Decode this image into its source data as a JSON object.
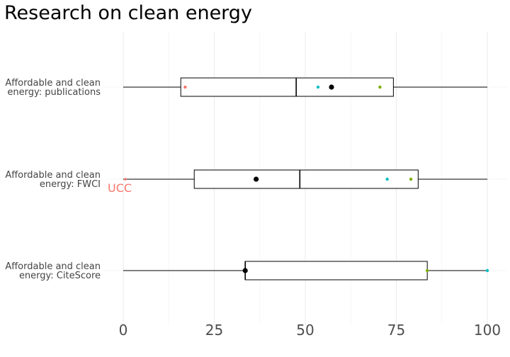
{
  "chart_data": {
    "type": "boxplot",
    "title": "Research on clean energy",
    "xlabel": "",
    "ylabel": "",
    "xlim": [
      0,
      105
    ],
    "xticks": [
      0,
      25,
      50,
      75,
      100
    ],
    "xtick_labels": [
      "0",
      "25",
      "50",
      "75",
      "100"
    ],
    "grid": "vertical",
    "categories": [
      {
        "label_lines": [
          "Affordable and clean",
          "energy: publications"
        ],
        "box": {
          "min": 0,
          "q1": 15.8,
          "median": 47.5,
          "q3": 74.2,
          "max": 100
        },
        "mean": 57.2,
        "points": [
          {
            "value": 17.0,
            "color": "#F8766D"
          },
          {
            "value": 53.5,
            "color": "#00BFC4"
          },
          {
            "value": 70.5,
            "color": "#7CAE00"
          }
        ]
      },
      {
        "label_lines": [
          "Affordable and clean",
          "energy: FWCI"
        ],
        "box": {
          "min": 0,
          "q1": 19.5,
          "median": 48.5,
          "q3": 81.0,
          "max": 100
        },
        "mean": 36.5,
        "points": [
          {
            "value": 72.5,
            "color": "#00BFC4"
          },
          {
            "value": 79.0,
            "color": "#7CAE00"
          }
        ],
        "annotation": {
          "text": "UCC",
          "value": 0,
          "color": "#F8766D"
        }
      },
      {
        "label_lines": [
          "Affordable and clean",
          "energy: CiteScore"
        ],
        "box": {
          "min": 0,
          "q1": 33.5,
          "median": 33.5,
          "q3": 83.5,
          "max": 100
        },
        "mean": 33.5,
        "points": [
          {
            "value": 83.5,
            "color": "#7CAE00"
          },
          {
            "value": 100,
            "color": "#00BFC4"
          }
        ]
      }
    ]
  }
}
